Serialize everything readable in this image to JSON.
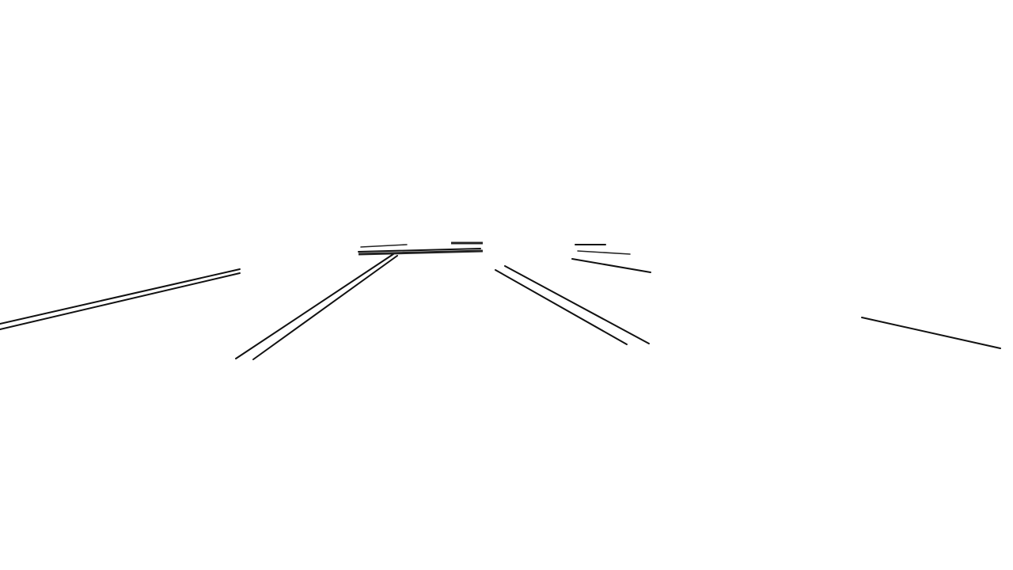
{
  "scene": {
    "description_type": "lane-line-edge-render",
    "background_color": "#ffffff",
    "line_color": "#111111"
  }
}
